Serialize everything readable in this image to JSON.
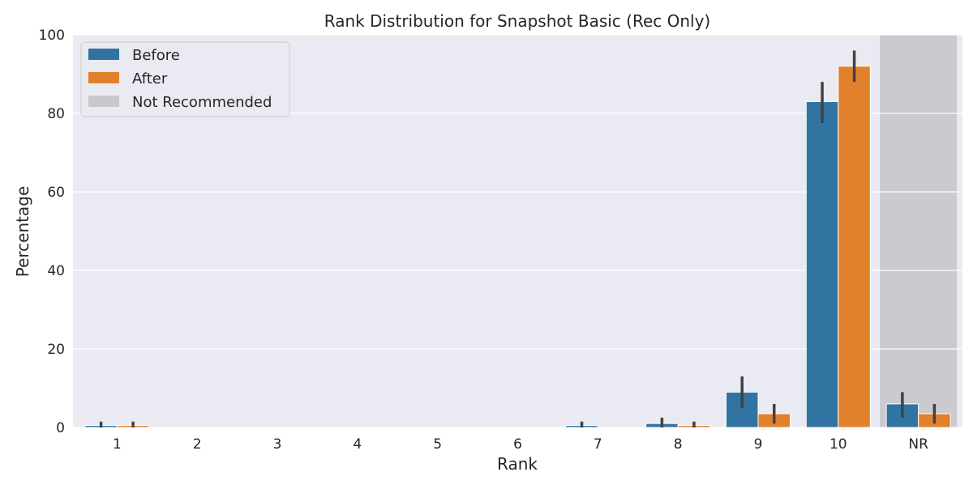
{
  "chart_data": {
    "type": "bar",
    "title": "Rank Distribution for Snapshot Basic (Rec Only)",
    "xlabel": "Rank",
    "ylabel": "Percentage",
    "ylim": [
      0,
      100
    ],
    "yticks": [
      0,
      20,
      40,
      60,
      80,
      100
    ],
    "grid": true,
    "legend_position": "top-left",
    "categories": [
      "1",
      "2",
      "3",
      "4",
      "5",
      "6",
      "7",
      "8",
      "9",
      "10",
      "NR"
    ],
    "highlight": {
      "category": "NR",
      "label": "Not Recommended",
      "color": "#c8c8cc"
    },
    "series": [
      {
        "name": "Before",
        "color": "#3274a1",
        "values": [
          0.5,
          0,
          0,
          0,
          0,
          0,
          0.5,
          1.0,
          9.0,
          83.0,
          6.0
        ],
        "error_low": [
          0,
          null,
          null,
          null,
          null,
          null,
          0,
          0,
          5.0,
          77.5,
          2.5
        ],
        "error_high": [
          1.5,
          null,
          null,
          null,
          null,
          null,
          1.5,
          2.5,
          13.0,
          88.0,
          9.0
        ]
      },
      {
        "name": "After",
        "color": "#e1812c",
        "values": [
          0.5,
          0,
          0,
          0,
          0,
          0,
          0,
          0.5,
          3.5,
          92.0,
          3.5
        ],
        "error_low": [
          0,
          null,
          null,
          null,
          null,
          null,
          null,
          0,
          1.0,
          88.0,
          1.0
        ],
        "error_high": [
          1.5,
          null,
          null,
          null,
          null,
          null,
          null,
          1.5,
          6.0,
          96.0,
          6.0
        ]
      }
    ]
  }
}
